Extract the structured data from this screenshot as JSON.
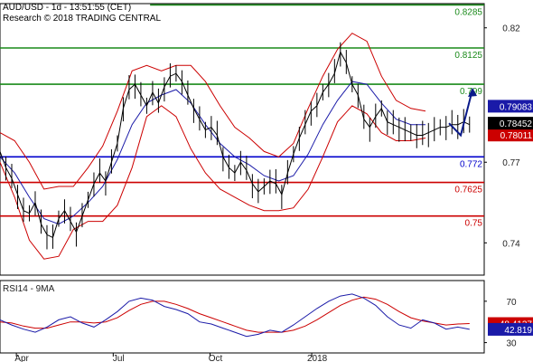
{
  "header": {
    "title": "AUD/USD - 1d - 13:51:55 (CET)",
    "subtitle": "Research © 2018 TRADING CENTRAL"
  },
  "chart_data": [
    {
      "type": "line",
      "name": "price-panel",
      "ylim": [
        0.728,
        0.829
      ],
      "y_ticks": [
        {
          "value": 0.82,
          "label": "0.82"
        },
        {
          "value": 0.77,
          "label": "0.77"
        },
        {
          "value": 0.74,
          "label": "0.74"
        }
      ],
      "levels": [
        {
          "value": 0.8285,
          "label": "0.8285",
          "color": "#1a8a1a",
          "start": 0.31
        },
        {
          "value": 0.8125,
          "label": "0.8125",
          "color": "#1a8a1a",
          "start": 0.0
        },
        {
          "value": 0.799,
          "label": "0.799",
          "color": "#1a8a1a",
          "start": 0.0
        },
        {
          "value": 0.772,
          "label": "0.772",
          "color": "#0000cc",
          "start": 0.0
        },
        {
          "value": 0.7625,
          "label": "0.7625",
          "color": "#cc0000",
          "start": 0.0
        },
        {
          "value": 0.75,
          "label": "0.75",
          "color": "#cc0000",
          "start": 0.0
        }
      ],
      "price_tags": [
        {
          "value": 0.79083,
          "label": "0.79083",
          "color": "#1a1aa8"
        },
        {
          "value": 0.78011,
          "label": "0.78011",
          "color": "#cc0000"
        },
        {
          "value": 0.78452,
          "label": "0.78452",
          "color": "#000000"
        }
      ],
      "close_series": {
        "name": "",
        "color": "#000000",
        "x": [
          0,
          4,
          8,
          12,
          16,
          20,
          24,
          28,
          32,
          36,
          40,
          44,
          48,
          52,
          56,
          60,
          64,
          68,
          72,
          76,
          80,
          84,
          88,
          92,
          96,
          100,
          104,
          108,
          112,
          116,
          120,
          124,
          128,
          132,
          136,
          140,
          144,
          148,
          152,
          156,
          160,
          164,
          168,
          172,
          176,
          180,
          184,
          188,
          192,
          196,
          200,
          204,
          208,
          212,
          216,
          220,
          224,
          228,
          232,
          236,
          240,
          244,
          248,
          252,
          256,
          260,
          264,
          268,
          272,
          276,
          280,
          284,
          288,
          292,
          296,
          300,
          304,
          308,
          312,
          316,
          320
        ],
        "values": [
          0.774,
          0.768,
          0.764,
          0.758,
          0.752,
          0.751,
          0.755,
          0.747,
          0.743,
          0.742,
          0.749,
          0.752,
          0.748,
          0.744,
          0.75,
          0.756,
          0.762,
          0.766,
          0.763,
          0.77,
          0.777,
          0.79,
          0.797,
          0.799,
          0.795,
          0.791,
          0.796,
          0.792,
          0.798,
          0.802,
          0.803,
          0.8,
          0.795,
          0.79,
          0.786,
          0.782,
          0.783,
          0.78,
          0.772,
          0.768,
          0.766,
          0.77,
          0.767,
          0.762,
          0.759,
          0.761,
          0.763,
          0.762,
          0.758,
          0.766,
          0.773,
          0.779,
          0.784,
          0.789,
          0.791,
          0.796,
          0.799,
          0.803,
          0.811,
          0.807,
          0.799,
          0.795,
          0.786,
          0.783,
          0.787,
          0.79,
          0.785,
          0.784,
          0.783,
          0.782,
          0.781,
          0.78,
          0.78,
          0.781,
          0.782,
          0.783,
          0.783,
          0.784,
          0.784,
          0.785,
          0.784
        ]
      },
      "upper_band": {
        "name": "",
        "color": "#cc0000",
        "x": [
          0,
          10,
          20,
          30,
          40,
          50,
          60,
          70,
          80,
          90,
          100,
          110,
          120,
          130,
          140,
          150,
          160,
          170,
          180,
          190,
          200,
          210,
          220,
          230,
          240,
          250,
          260,
          270,
          280,
          290
        ],
        "values": [
          0.781,
          0.778,
          0.77,
          0.76,
          0.761,
          0.761,
          0.768,
          0.776,
          0.789,
          0.804,
          0.806,
          0.804,
          0.806,
          0.806,
          0.8,
          0.791,
          0.783,
          0.779,
          0.774,
          0.772,
          0.777,
          0.79,
          0.802,
          0.812,
          0.818,
          0.815,
          0.802,
          0.793,
          0.79,
          0.789
        ]
      },
      "lower_band": {
        "name": "",
        "color": "#cc0000",
        "x": [
          0,
          10,
          20,
          30,
          40,
          50,
          60,
          70,
          80,
          90,
          100,
          110,
          120,
          130,
          140,
          150,
          160,
          170,
          180,
          190,
          200,
          210,
          220,
          230,
          240,
          250,
          260,
          270,
          280,
          290
        ],
        "values": [
          0.77,
          0.757,
          0.741,
          0.734,
          0.735,
          0.745,
          0.748,
          0.748,
          0.754,
          0.768,
          0.787,
          0.791,
          0.787,
          0.775,
          0.766,
          0.76,
          0.757,
          0.754,
          0.752,
          0.752,
          0.753,
          0.76,
          0.772,
          0.785,
          0.791,
          0.788,
          0.781,
          0.778,
          0.778,
          0.779
        ]
      },
      "moving_average": {
        "name": "",
        "color": "#1a1aa8",
        "x": [
          0,
          10,
          20,
          30,
          40,
          50,
          60,
          70,
          80,
          90,
          100,
          110,
          120,
          130,
          140,
          150,
          160,
          170,
          180,
          190,
          200,
          210,
          220,
          230,
          240,
          250,
          260,
          270,
          280,
          290
        ],
        "values": [
          0.772,
          0.766,
          0.757,
          0.749,
          0.747,
          0.75,
          0.755,
          0.761,
          0.771,
          0.784,
          0.792,
          0.795,
          0.797,
          0.792,
          0.784,
          0.777,
          0.772,
          0.769,
          0.765,
          0.763,
          0.765,
          0.773,
          0.784,
          0.793,
          0.8,
          0.799,
          0.792,
          0.786,
          0.784,
          0.784
        ]
      },
      "forecast_arrow": {
        "color": "#0a1a8a",
        "x": [
          306,
          314,
          322
        ],
        "values": [
          0.7845,
          0.78,
          0.797
        ]
      }
    },
    {
      "type": "line",
      "name": "rsi-panel",
      "title": "RSI14 - 9MA",
      "ylim": [
        20,
        90
      ],
      "y_ticks": [
        {
          "value": 70,
          "label": "70"
        },
        {
          "value": 30,
          "label": "30"
        }
      ],
      "price_tags": [
        {
          "value": 48.4137,
          "label": "48.4137",
          "color": "#cc0000"
        },
        {
          "value": 42.819,
          "label": "42.819",
          "color": "#1a1aa8"
        }
      ],
      "rsi_series": {
        "name": "",
        "color": "#1a1aa8",
        "x": [
          0,
          8,
          16,
          24,
          32,
          40,
          48,
          56,
          64,
          72,
          80,
          88,
          96,
          104,
          112,
          120,
          128,
          136,
          144,
          152,
          160,
          168,
          176,
          184,
          192,
          200,
          208,
          216,
          224,
          232,
          240,
          248,
          256,
          264,
          272,
          280,
          288,
          296,
          304,
          312,
          320
        ],
        "values": [
          52,
          47,
          43,
          40,
          45,
          52,
          55,
          49,
          45,
          52,
          60,
          70,
          73,
          71,
          65,
          62,
          58,
          50,
          48,
          44,
          40,
          36,
          38,
          42,
          40,
          47,
          55,
          63,
          70,
          75,
          77,
          73,
          66,
          55,
          47,
          44,
          52,
          49,
          43,
          45,
          42.8
        ]
      },
      "rsi_ma": {
        "name": "",
        "color": "#cc0000",
        "x": [
          0,
          8,
          16,
          24,
          32,
          40,
          48,
          56,
          64,
          72,
          80,
          88,
          96,
          104,
          112,
          120,
          128,
          136,
          144,
          152,
          160,
          168,
          176,
          184,
          192,
          200,
          208,
          216,
          224,
          232,
          240,
          248,
          256,
          264,
          272,
          280,
          288,
          296,
          304,
          312,
          320
        ],
        "values": [
          50,
          49,
          46,
          44,
          44,
          47,
          50,
          50,
          49,
          50,
          54,
          61,
          67,
          70,
          70,
          67,
          63,
          58,
          54,
          50,
          46,
          42,
          40,
          40,
          40,
          42,
          46,
          52,
          59,
          66,
          71,
          74,
          72,
          67,
          60,
          54,
          51,
          49,
          47,
          48,
          48.4
        ]
      }
    }
  ],
  "x_axis": {
    "labels": [
      {
        "pos": 0.045,
        "label": "Apr"
      },
      {
        "pos": 0.245,
        "label": "Jul"
      },
      {
        "pos": 0.445,
        "label": "Oct"
      },
      {
        "pos": 0.655,
        "label": "2018"
      }
    ]
  }
}
